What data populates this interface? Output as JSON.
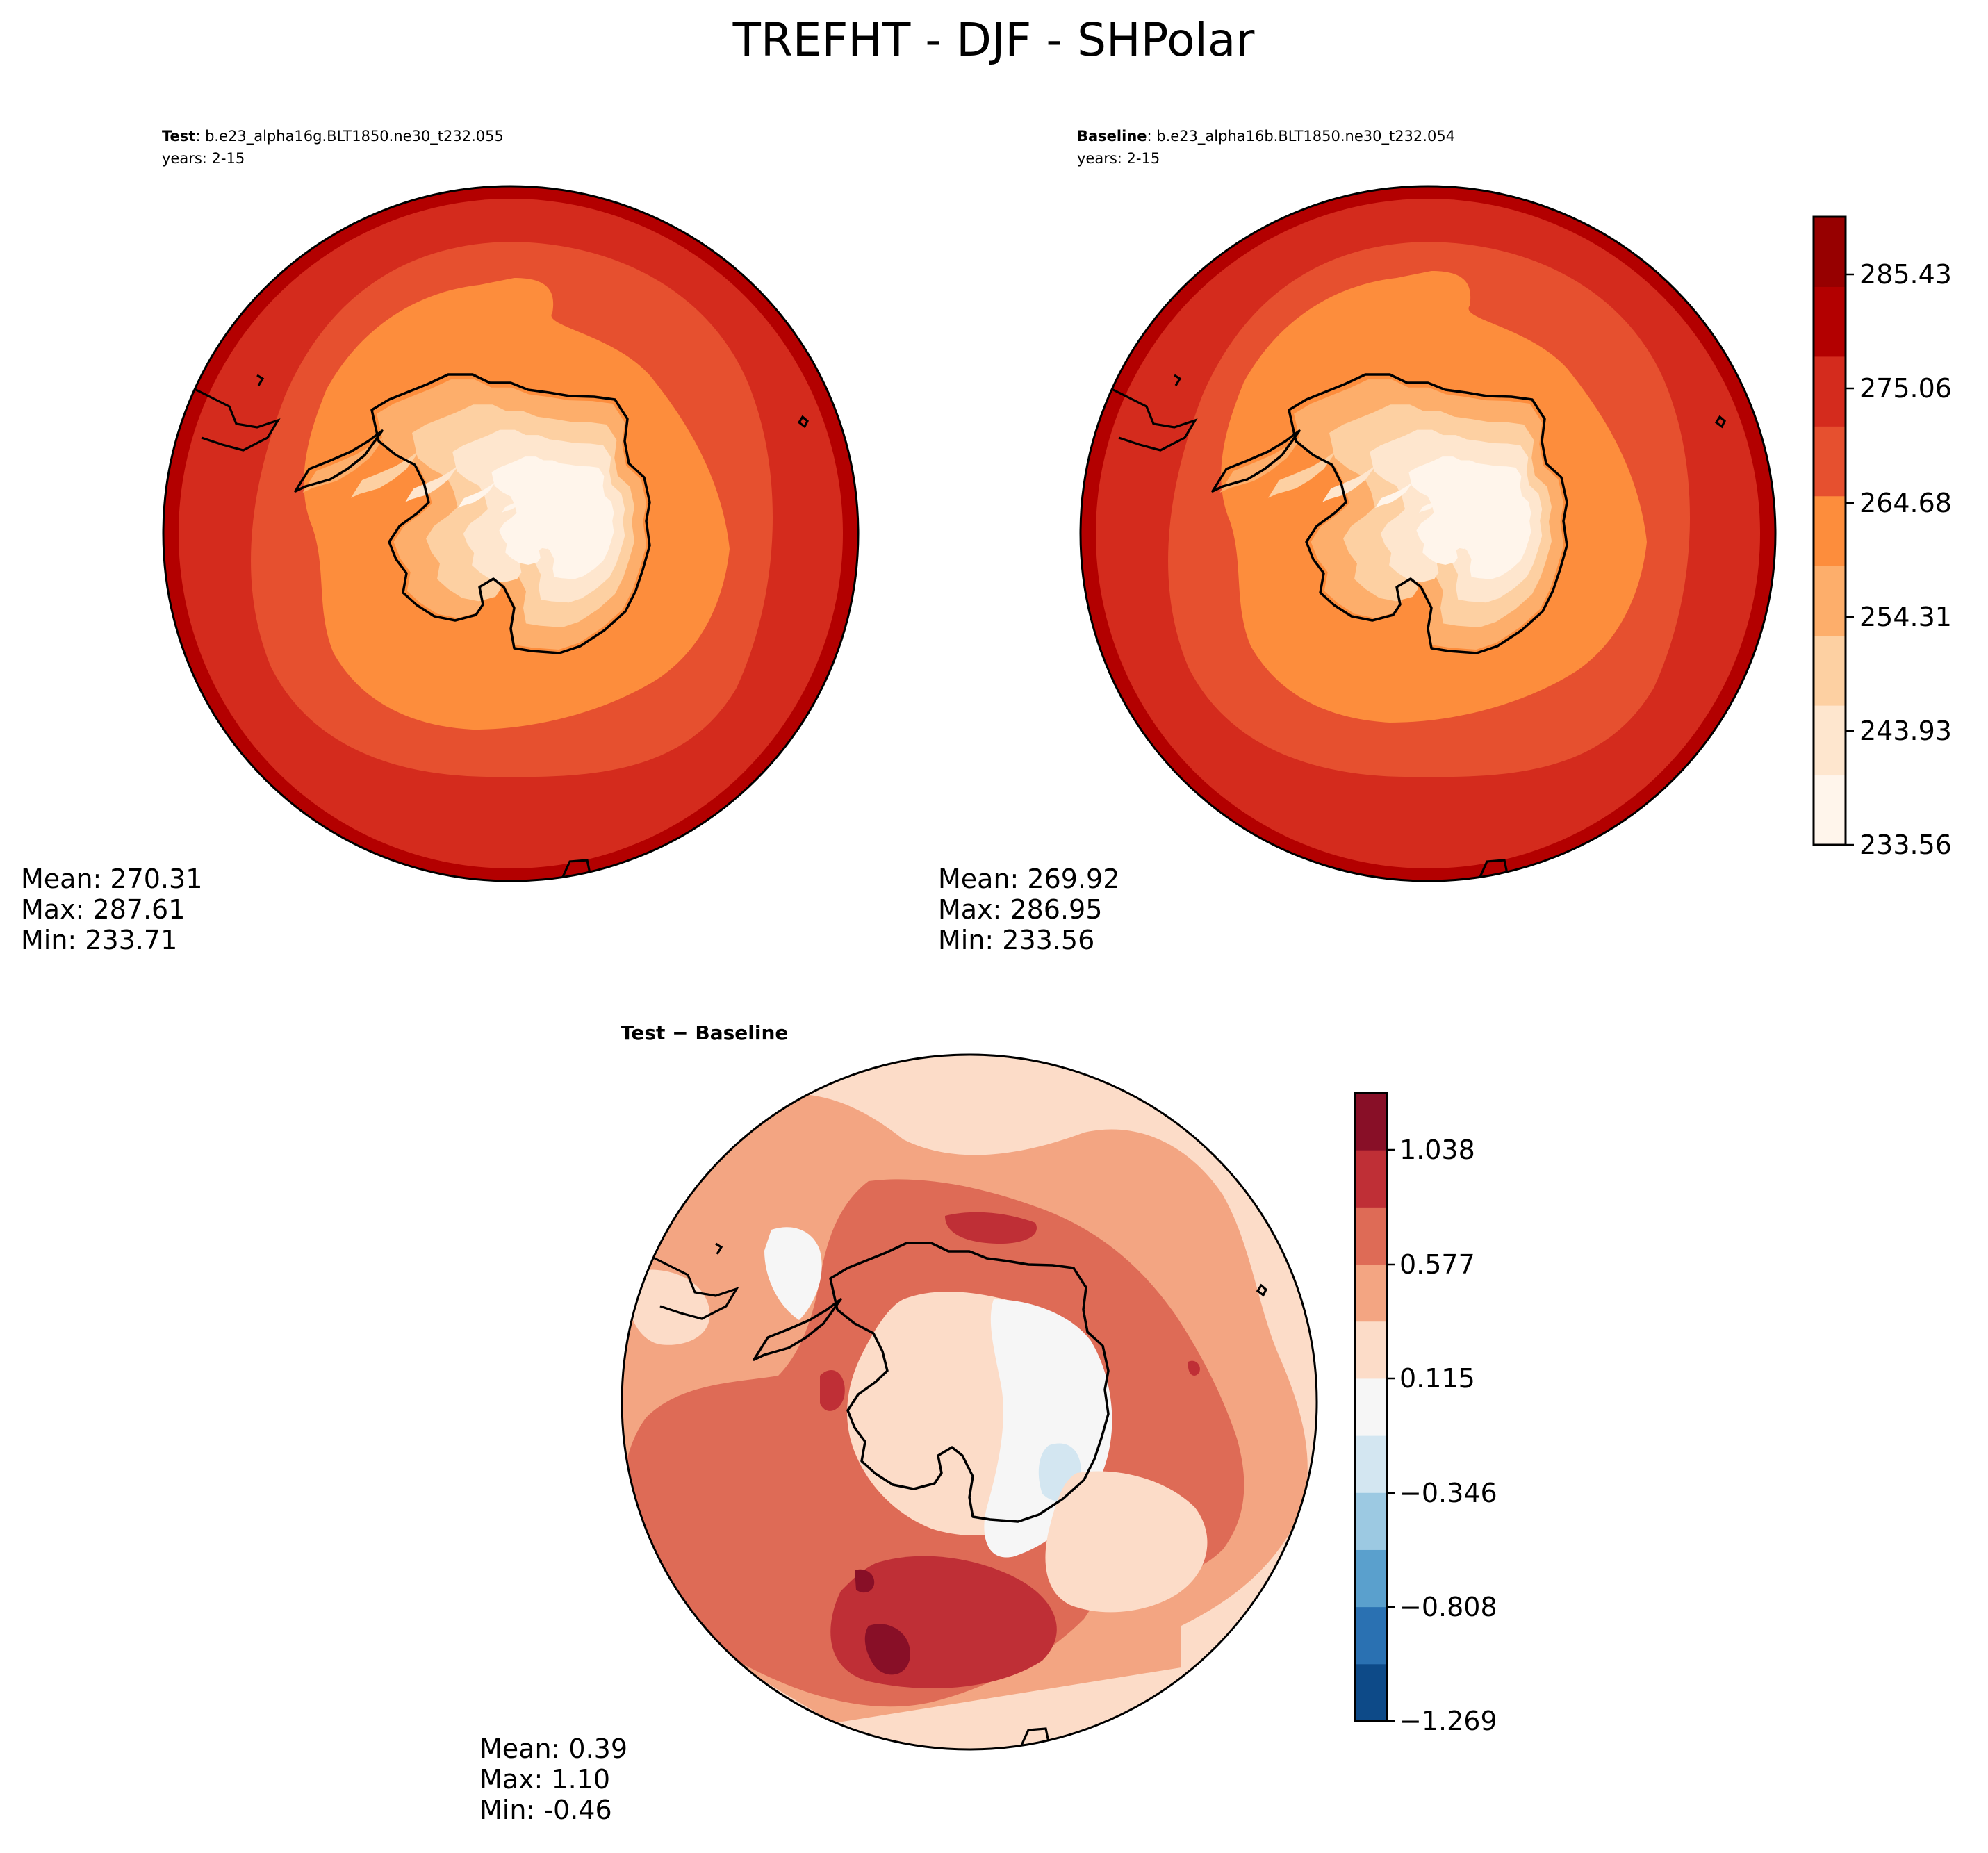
{
  "title": "TREFHT - DJF - SHPolar",
  "panels": {
    "test": {
      "label_bold": "Test",
      "label_rest": ": b.e23_alpha16g.BLT1850.ne30_t232.055",
      "years": "years: 2-15",
      "stats": [
        "Mean: 270.31",
        "Max: 287.61",
        "Min: 233.71"
      ]
    },
    "baseline": {
      "label_bold": "Baseline",
      "label_rest": ": b.e23_alpha16b.BLT1850.ne30_t232.054",
      "years": "years: 2-15",
      "stats": [
        "Mean: 269.92",
        "Max: 286.95",
        "Min: 233.56"
      ]
    },
    "diff": {
      "label_bold": "Test − Baseline",
      "stats": [
        "Mean:  0.39",
        "Max:  1.10",
        "Min: -0.46"
      ]
    }
  },
  "colorbars": {
    "main": {
      "ticks": [
        "285.43",
        "275.06",
        "264.68",
        "254.31",
        "243.93",
        "233.56"
      ],
      "colors": [
        "#fff5eb",
        "#fee6ce",
        "#fdd0a2",
        "#fdae6b",
        "#fd8d3c",
        "#e6502f",
        "#d42b1d",
        "#b30000",
        "#970000"
      ]
    },
    "diff": {
      "ticks": [
        "1.038",
        "0.577",
        "0.115",
        "−0.346",
        "−0.808",
        "−1.269"
      ],
      "colors": [
        "#0d4a88",
        "#2a71b2",
        "#5aa0cd",
        "#9cc9e2",
        "#d3e6f1",
        "#f6f6f6",
        "#fcdcc8",
        "#f3a582",
        "#de6b56",
        "#bf2f36",
        "#880f27"
      ]
    }
  }
}
